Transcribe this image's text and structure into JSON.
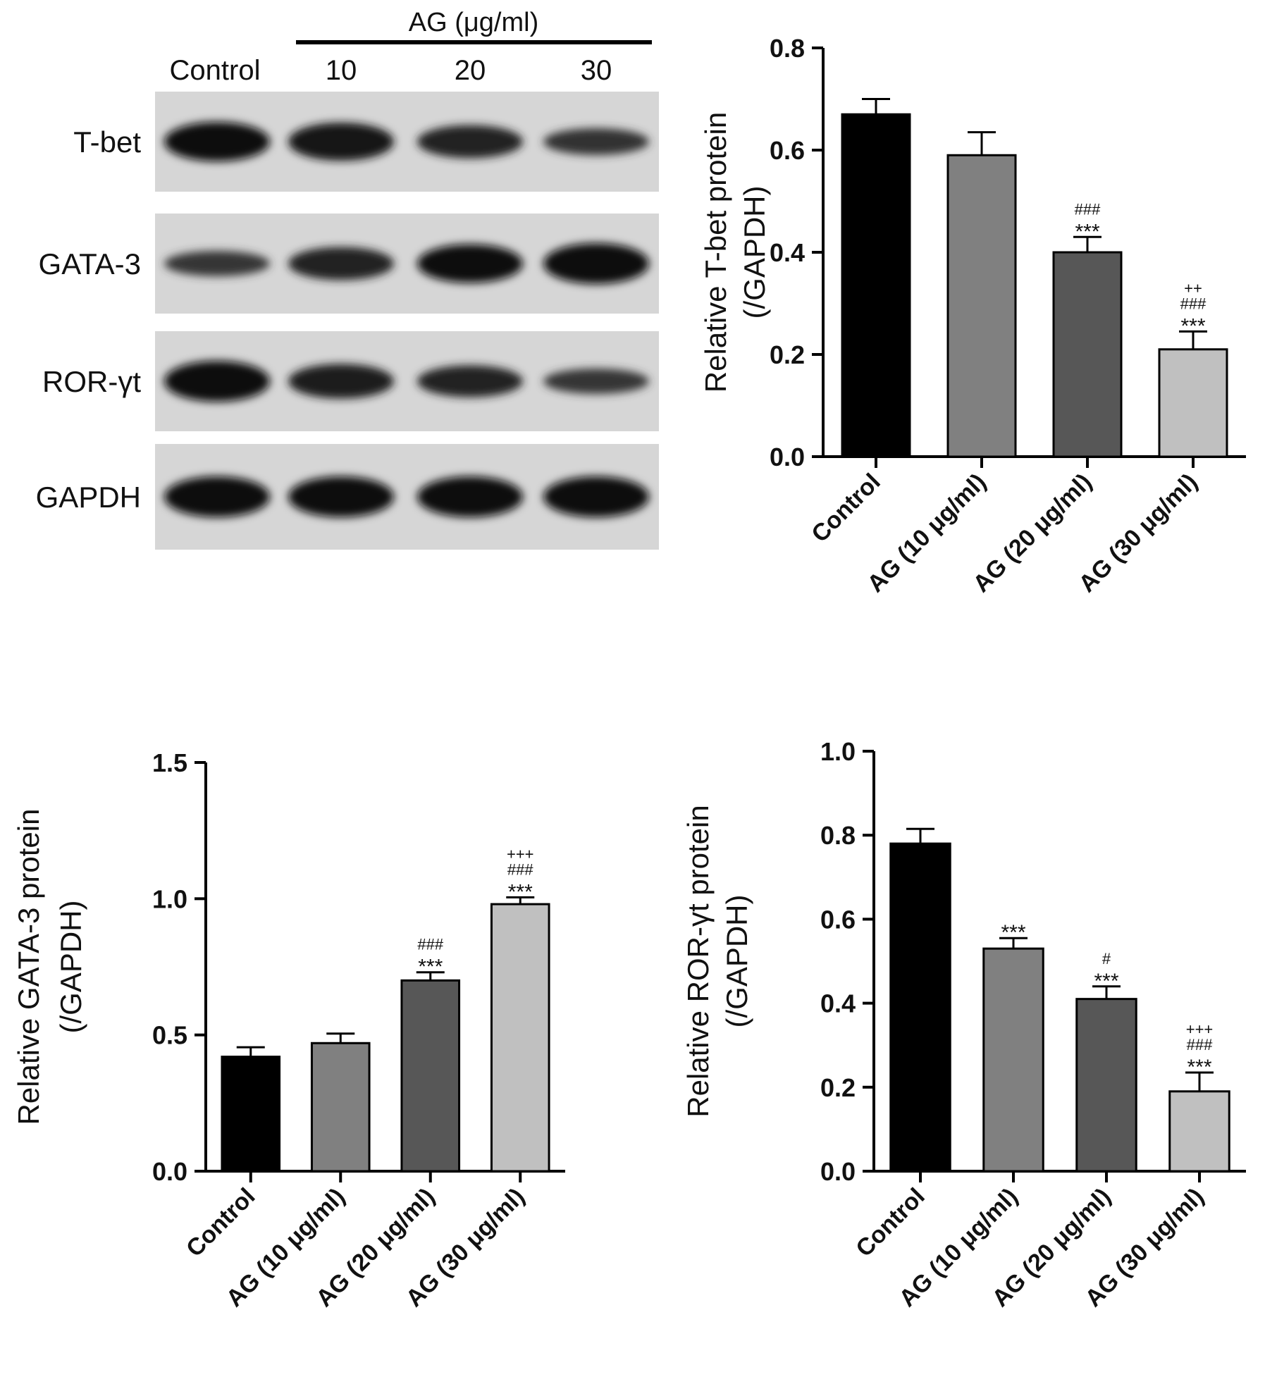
{
  "blot": {
    "group_label": "AG (μg/ml)",
    "lane_labels": [
      "Control",
      "10",
      "20",
      "30"
    ],
    "rows": [
      {
        "label": "T-bet",
        "intensity": [
          0.95,
          0.9,
          0.72,
          0.5
        ]
      },
      {
        "label": "GATA-3",
        "intensity": [
          0.45,
          0.72,
          0.92,
          1.0
        ]
      },
      {
        "label": "ROR-γt",
        "intensity": [
          1.0,
          0.78,
          0.68,
          0.45
        ]
      },
      {
        "label": "GAPDH",
        "intensity": [
          1.0,
          1.0,
          1.0,
          1.0
        ]
      }
    ]
  },
  "chart_data": [
    {
      "type": "bar",
      "ylabel_lines": [
        "Relative T-bet protein",
        "(/GAPDH)"
      ],
      "categories": [
        "Control",
        "AG (10 μg/ml)",
        "AG (20 μg/ml)",
        "AG (30 μg/ml)"
      ],
      "values": [
        0.67,
        0.59,
        0.4,
        0.21
      ],
      "errors": [
        0.03,
        0.045,
        0.03,
        0.035
      ],
      "annotations": [
        [],
        [],
        [
          "###",
          "***"
        ],
        [
          "++",
          "###",
          "***"
        ]
      ],
      "ylim": [
        0,
        0.8
      ],
      "yticks": [
        0.0,
        0.2,
        0.4,
        0.6,
        0.8
      ],
      "ytick_labels": [
        "0.0",
        "0.2",
        "0.4",
        "0.6",
        "0.8"
      ],
      "colors": [
        "#000000",
        "#808080",
        "#575757",
        "#c0c0c0"
      ]
    },
    {
      "type": "bar",
      "ylabel_lines": [
        "Relative GATA-3 protein",
        "(/GAPDH)"
      ],
      "categories": [
        "Control",
        "AG (10 μg/ml)",
        "AG (20 μg/ml)",
        "AG (30 μg/ml)"
      ],
      "values": [
        0.42,
        0.47,
        0.7,
        0.98
      ],
      "errors": [
        0.035,
        0.035,
        0.03,
        0.025
      ],
      "annotations": [
        [],
        [],
        [
          "###",
          "***"
        ],
        [
          "+++",
          "###",
          "***"
        ]
      ],
      "ylim": [
        0,
        1.5
      ],
      "yticks": [
        0.0,
        0.5,
        1.0,
        1.5
      ],
      "ytick_labels": [
        "0.0",
        "0.5",
        "1.0",
        "1.5"
      ],
      "colors": [
        "#000000",
        "#808080",
        "#575757",
        "#c0c0c0"
      ]
    },
    {
      "type": "bar",
      "ylabel_lines": [
        "Relative ROR-γt protein",
        "(/GAPDH)"
      ],
      "categories": [
        "Control",
        "AG (10 μg/ml)",
        "AG (20 μg/ml)",
        "AG (30 μg/ml)"
      ],
      "values": [
        0.78,
        0.53,
        0.41,
        0.19
      ],
      "errors": [
        0.035,
        0.025,
        0.03,
        0.045
      ],
      "annotations": [
        [],
        [
          "***"
        ],
        [
          "#",
          "***"
        ],
        [
          "+++",
          "###",
          "***"
        ]
      ],
      "ylim": [
        0,
        1.0
      ],
      "yticks": [
        0.0,
        0.2,
        0.4,
        0.6,
        0.8,
        1.0
      ],
      "ytick_labels": [
        "0.0",
        "0.2",
        "0.4",
        "0.6",
        "0.8",
        "1.0"
      ],
      "colors": [
        "#000000",
        "#808080",
        "#575757",
        "#c0c0c0"
      ]
    }
  ]
}
